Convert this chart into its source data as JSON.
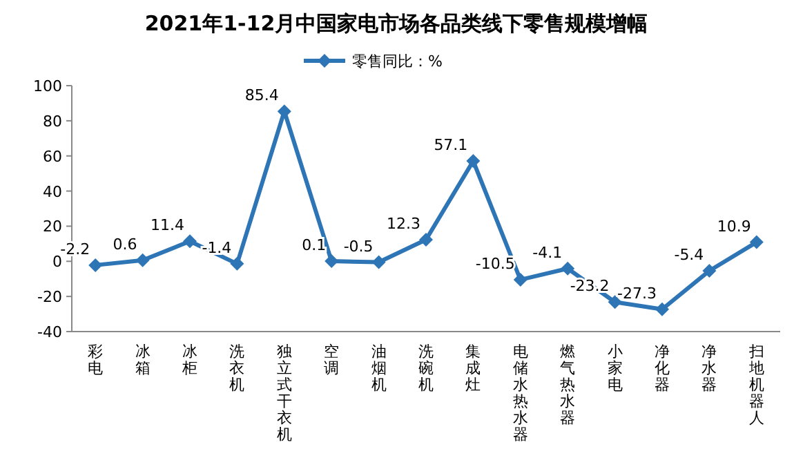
{
  "chart_data": {
    "type": "line",
    "title": "2021年1-12月中国家电市场各品类线下零售规模增幅",
    "categories": [
      "彩电",
      "冰箱",
      "冰柜",
      "洗衣机",
      "独立式干衣机",
      "空调",
      "油烟机",
      "洗碗机",
      "集成灶",
      "电储水热水器",
      "燃气热水器",
      "小家电",
      "净化器",
      "净水器",
      "扫地机器人"
    ],
    "series": [
      {
        "name": "零售同比：%",
        "color": "#2e75b6",
        "values": [
          -2.2,
          0.6,
          11.4,
          -1.4,
          85.4,
          0.1,
          -0.5,
          12.3,
          57.1,
          -10.5,
          -4.1,
          -23.2,
          -27.3,
          -5.4,
          10.9
        ]
      }
    ],
    "ylim": [
      -40,
      100
    ],
    "yticks": [
      -40,
      -20,
      0,
      20,
      40,
      60,
      80,
      100
    ],
    "marker": "diamond",
    "data_labels": true,
    "legend": "top",
    "grid": false
  }
}
